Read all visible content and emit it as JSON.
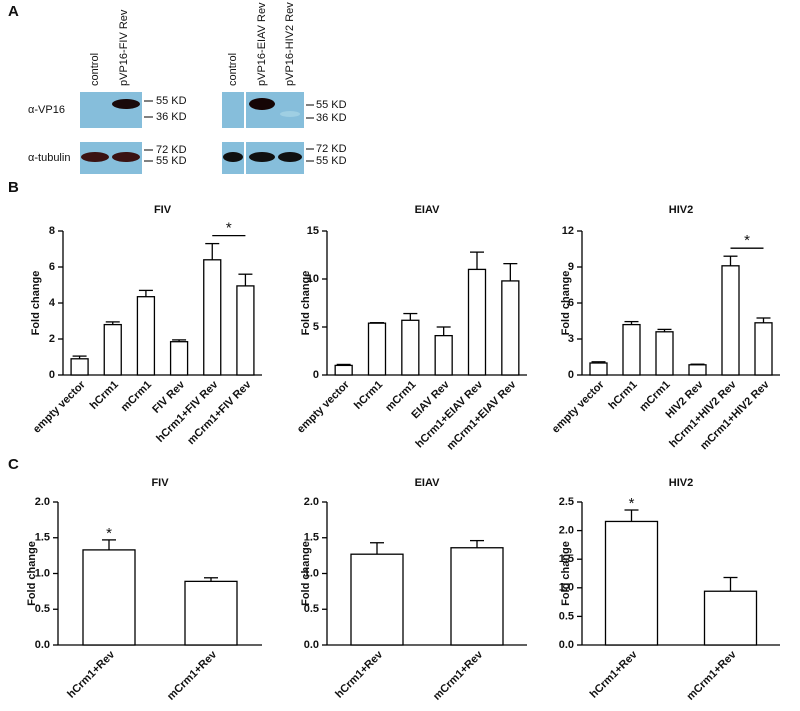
{
  "panels": {
    "a": "A",
    "b": "B",
    "c": "C"
  },
  "blots": {
    "left_columns": [
      "control",
      "pVP16-FIV Rev"
    ],
    "right_columns": [
      "control",
      "pVP16-EIAV Rev",
      "pVP16-HIV2 Rev"
    ],
    "rows": [
      "α-VP16",
      "α-tubulin"
    ],
    "left_markers": [
      "55 KD",
      "36 KD",
      "72 KD",
      "55 KD"
    ],
    "right_markers": [
      "55 KD",
      "36 KD",
      "72 KD",
      "55 KD"
    ]
  },
  "chart_data": [
    {
      "type": "bar",
      "title": "FIV",
      "y_label": "Fold change",
      "categories": [
        "empty vector",
        "hCrm1",
        "mCrm1",
        "FIV Rev",
        "hCrm1+FIV Rev",
        "mCrm1+FIV Rev"
      ],
      "values": [
        0.9,
        2.8,
        4.35,
        1.85,
        6.4,
        4.95
      ],
      "errors": [
        0.15,
        0.15,
        0.35,
        0.1,
        0.9,
        0.65
      ],
      "ylim": [
        0,
        8
      ],
      "yticks": [
        0,
        2,
        4,
        6,
        8
      ],
      "color": "#ffffff",
      "annotations": [
        {
          "text": "*",
          "index": [
            4,
            5
          ]
        }
      ]
    },
    {
      "type": "bar",
      "title": "EIAV",
      "y_label": "Fold change",
      "categories": [
        "empty vector",
        "hCrm1",
        "mCrm1",
        "EIAV Rev",
        "hCrm1+EIAV Rev",
        "mCrm1+EIAV Rev"
      ],
      "values": [
        1.0,
        5.4,
        5.7,
        4.1,
        11.0,
        9.8
      ],
      "errors": [
        0.1,
        0.05,
        0.7,
        0.9,
        1.8,
        1.8
      ],
      "ylim": [
        0,
        15
      ],
      "yticks": [
        0,
        5,
        10,
        15
      ],
      "color": "#ffffff",
      "annotations": []
    },
    {
      "type": "bar",
      "title": "HIV2",
      "y_label": "Fold change",
      "categories": [
        "empty vector",
        "hCrm1",
        "mCrm1",
        "HIV2 Rev",
        "hCrm1+HIV2 Rev",
        "mCrm1+HIV2 Rev"
      ],
      "values": [
        1.0,
        4.2,
        3.6,
        0.85,
        9.1,
        4.35
      ],
      "errors": [
        0.1,
        0.25,
        0.2,
        0.05,
        0.8,
        0.4
      ],
      "ylim": [
        0,
        12
      ],
      "yticks": [
        0,
        3,
        6,
        9,
        12
      ],
      "color": "#ffffff",
      "annotations": [
        {
          "text": "*",
          "index": [
            4,
            5
          ]
        }
      ]
    },
    {
      "type": "bar",
      "title": "FIV",
      "y_label": "Fold change",
      "categories": [
        "hCrm1+Rev",
        "mCrm1+Rev"
      ],
      "values": [
        1.33,
        0.89
      ],
      "errors": [
        0.14,
        0.05
      ],
      "ylim": [
        0,
        2
      ],
      "yticks": [
        {
          "value": 0,
          "label": "0.0"
        },
        0.5,
        {
          "value": 1,
          "label": "1.0"
        },
        1.5,
        {
          "value": 2,
          "label": "2.0"
        }
      ],
      "color": "#ffffff",
      "annotations": [
        {
          "text": "*",
          "index": [
            0
          ]
        }
      ]
    },
    {
      "type": "bar",
      "title": "EIAV",
      "y_label": "Fold change",
      "categories": [
        "hCrm1+Rev",
        "mCrm1+Rev"
      ],
      "values": [
        1.27,
        1.36
      ],
      "errors": [
        0.16,
        0.1
      ],
      "ylim": [
        0,
        2
      ],
      "yticks": [
        {
          "value": 0,
          "label": "0.0"
        },
        0.5,
        {
          "value": 1,
          "label": "1.0"
        },
        1.5,
        {
          "value": 2,
          "label": "2.0"
        }
      ],
      "color": "#ffffff",
      "annotations": []
    },
    {
      "type": "bar",
      "title": "HIV2",
      "y_label": "Fold change",
      "categories": [
        "hCrm1+Rev",
        "mCrm1+Rev"
      ],
      "values": [
        2.16,
        0.94
      ],
      "errors": [
        0.2,
        0.24
      ],
      "ylim": [
        0,
        2.5
      ],
      "yticks": [
        {
          "value": 0,
          "label": "0.0"
        },
        0.5,
        {
          "value": 1,
          "label": "1.0"
        },
        1.5,
        {
          "value": 2,
          "label": "2.0"
        },
        2.5
      ],
      "color": "#ffffff",
      "annotations": [
        {
          "text": "*",
          "index": [
            0
          ]
        }
      ]
    }
  ]
}
